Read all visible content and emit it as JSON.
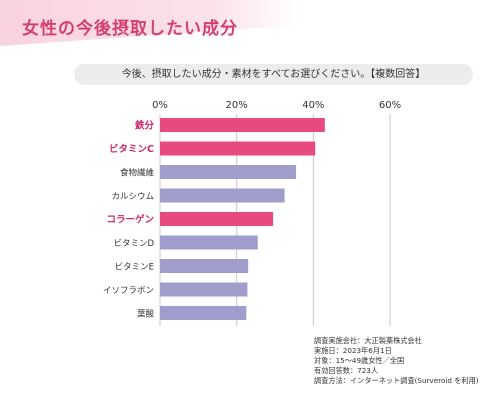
{
  "header": {
    "title": "女性の今後摂取したい成分",
    "question": "今後、摂取したい成分・素材をすべてお選びください。【複数回答】"
  },
  "chart_data": {
    "type": "bar",
    "orientation": "horizontal",
    "categories": [
      "鉄分",
      "ビタミンC",
      "食物繊維",
      "カルシウム",
      "コラーゲン",
      "ビタミンD",
      "ビタミンE",
      "イソフラボン",
      "葉酸"
    ],
    "values": [
      43,
      40.5,
      35.5,
      32.5,
      29.5,
      25.5,
      23,
      22.8,
      22.5
    ],
    "highlighted": [
      true,
      true,
      false,
      false,
      true,
      false,
      false,
      false,
      false
    ],
    "ticks": [
      "0%",
      "20%",
      "40%",
      "60%"
    ],
    "tick_values": [
      0,
      20,
      40,
      60
    ],
    "xlim": [
      0,
      60
    ],
    "grid": true,
    "colors": {
      "highlight": "#e84a7f",
      "normal": "#a09ccb",
      "highlight_label": "#d0286a",
      "normal_label": "#333333",
      "grid": "#c8c8c8"
    }
  },
  "footnote": [
    "調査実施会社：大正製薬株式会社",
    "実施日：2023年6月1日",
    "対象：15〜49歳女性／全国",
    "有効回答数：723人",
    "調査方法：インターネット調査(Surveroid を利用)"
  ]
}
